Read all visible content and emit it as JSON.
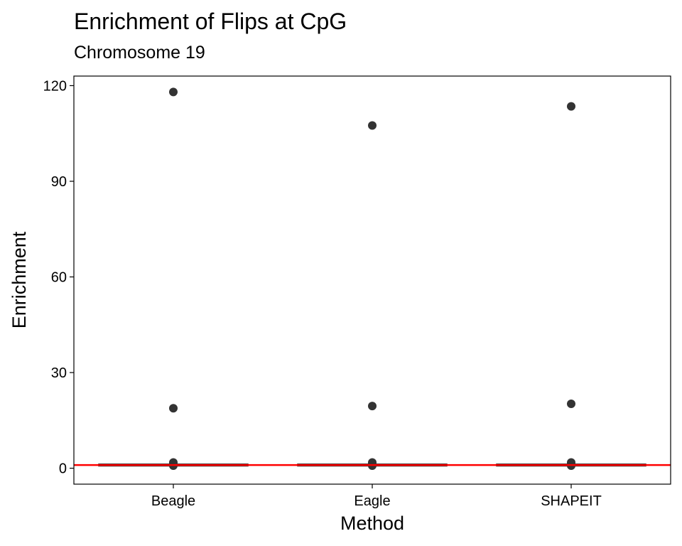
{
  "chart_data": {
    "type": "boxplot",
    "title": "Enrichment of Flips at CpG",
    "subtitle": "Chromosome 19",
    "xlabel": "Method",
    "ylabel": "Enrichment",
    "categories": [
      "Beagle",
      "Eagle",
      "SHAPEIT"
    ],
    "ylim": [
      -5,
      123
    ],
    "yticks": [
      0,
      30,
      60,
      90,
      120
    ],
    "boxes": [
      {
        "category": "Beagle",
        "median": 1.0,
        "q1": 0.7,
        "q3": 1.3,
        "outliers": [
          118,
          18.8,
          1.8,
          1.2,
          0.8
        ]
      },
      {
        "category": "Eagle",
        "median": 1.0,
        "q1": 0.7,
        "q3": 1.3,
        "outliers": [
          107.5,
          19.5,
          1.8,
          1.2,
          0.8
        ]
      },
      {
        "category": "SHAPEIT",
        "median": 1.0,
        "q1": 0.7,
        "q3": 1.3,
        "outliers": [
          113.5,
          20.2,
          1.8,
          1.2,
          0.8
        ]
      }
    ],
    "reference_line": {
      "y": 1,
      "color": "#ff0000"
    },
    "grid": false,
    "point_color": "#333333"
  }
}
